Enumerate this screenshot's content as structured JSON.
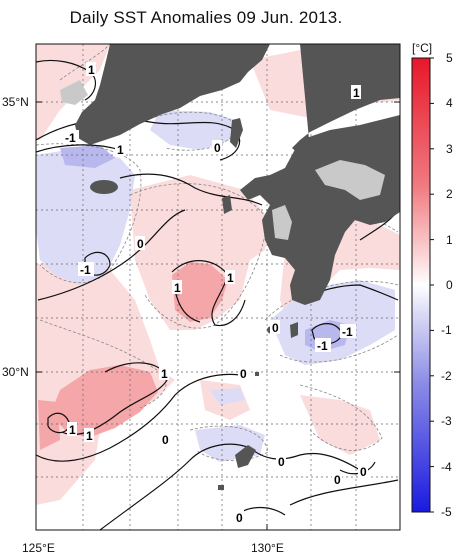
{
  "title": "Daily SST Anomalies 09 Jun. 2013.",
  "lat_labels": [
    "35°N",
    "30°N"
  ],
  "lon_labels": [
    "125°E",
    "130°E"
  ],
  "colorbar": {
    "unit": "[°C]",
    "ticks": [
      "5",
      "4",
      "3",
      "2",
      "1",
      "0",
      "-1",
      "-2",
      "-3",
      "-4",
      "-5"
    ],
    "range": [
      -5,
      5
    ],
    "colors": {
      "warm_max": "#e8172a",
      "warm_mid": "#f38b8e",
      "warm_low": "#fbdadb",
      "neutral": "#ffffff",
      "cool_low": "#dcdcf6",
      "cool_mid": "#8a8ae6",
      "cool_max": "#1a1ae0"
    }
  },
  "contour_labels": [
    "1",
    "1",
    "-1",
    "1",
    "0",
    "0",
    "-1",
    "1",
    "1",
    "0",
    "-1",
    "-1",
    "1",
    "0",
    "1",
    "1",
    "0",
    "0",
    "0",
    "0",
    "0"
  ],
  "land_color": "#555555",
  "map_extent": {
    "lon": [
      125,
      133
    ],
    "lat": [
      26,
      36
    ]
  }
}
